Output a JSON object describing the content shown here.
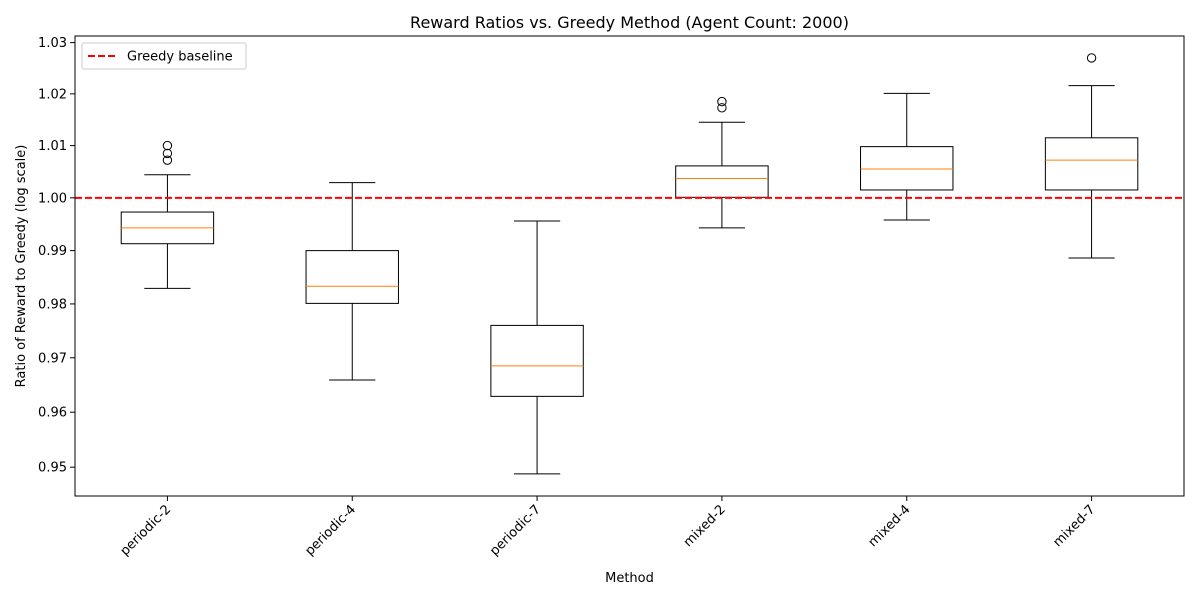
{
  "chart_data": {
    "type": "boxplot",
    "title": "Reward Ratios vs. Greedy Method (Agent Count: 2000)",
    "xlabel": "Method",
    "ylabel": "Ratio of Reward to Greedy (log scale)",
    "ylim": [
      0.9448,
      1.0313
    ],
    "yticks": [
      0.95,
      0.96,
      0.97,
      0.98,
      0.99,
      1.0,
      1.01,
      1.02,
      1.03
    ],
    "ytick_labels": [
      "0.95",
      "0.96",
      "0.97",
      "0.98",
      "0.99",
      "1.00",
      "1.01",
      "1.02",
      "1.03"
    ],
    "baseline": {
      "value": 1.0,
      "label": "Greedy baseline",
      "color": "#ff0000"
    },
    "legend_location": "upper-left",
    "colors": {
      "box": "#000000",
      "median": "#ff7f0e"
    },
    "categories": [
      "periodic-2",
      "periodic-4",
      "periodic-7",
      "mixed-2",
      "mixed-4",
      "mixed-7"
    ],
    "boxes": [
      {
        "name": "periodic-2",
        "whisker_low": 0.9829,
        "q1": 0.9913,
        "median": 0.9943,
        "q3": 0.9973,
        "whisker_high": 1.0044,
        "outliers": [
          1.0072,
          1.0085,
          1.01
        ]
      },
      {
        "name": "periodic-4",
        "whisker_low": 0.9659,
        "q1": 0.9801,
        "median": 0.9833,
        "q3": 0.99,
        "whisker_high": 1.0029,
        "outliers": []
      },
      {
        "name": "periodic-7",
        "whisker_low": 0.9488,
        "q1": 0.9629,
        "median": 0.9685,
        "q3": 0.976,
        "whisker_high": 0.9956,
        "outliers": []
      },
      {
        "name": "mixed-2",
        "whisker_low": 0.9943,
        "q1": 1.0001,
        "median": 1.0037,
        "q3": 1.0061,
        "whisker_high": 1.0145,
        "outliers": [
          1.0173,
          1.0185
        ]
      },
      {
        "name": "mixed-4",
        "whisker_low": 0.9958,
        "q1": 1.0015,
        "median": 1.0055,
        "q3": 1.0098,
        "whisker_high": 1.0201,
        "outliers": []
      },
      {
        "name": "mixed-7",
        "whisker_low": 0.9886,
        "q1": 1.0015,
        "median": 1.0072,
        "q3": 1.0115,
        "whisker_high": 1.0216,
        "outliers": [
          1.027
        ]
      }
    ]
  }
}
